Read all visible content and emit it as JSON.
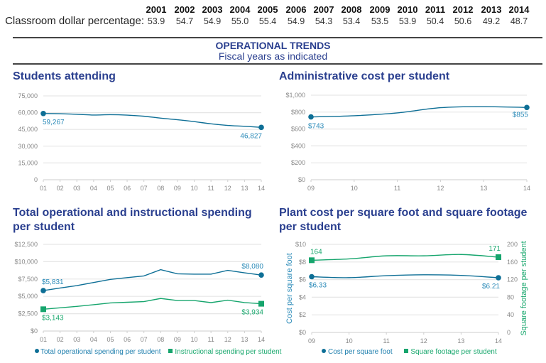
{
  "top_table": {
    "row_label": "Classroom dollar percentage:",
    "years": [
      "2001",
      "2002",
      "2003",
      "2004",
      "2005",
      "2006",
      "2007",
      "2008",
      "2009",
      "2010",
      "2011",
      "2012",
      "2013",
      "2014"
    ],
    "values": [
      "53.9",
      "54.7",
      "54.9",
      "55.0",
      "55.4",
      "54.9",
      "54.3",
      "53.4",
      "53.5",
      "53.9",
      "50.4",
      "50.6",
      "49.2",
      "48.7"
    ]
  },
  "section": {
    "title": "OPERATIONAL TRENDS",
    "subtitle": "Fiscal years as indicated"
  },
  "colors": {
    "primary_line": "#0e6f96",
    "primary_label": "#2a8ab8",
    "secondary_line": "#16a56d",
    "secondary_label": "#1aa86e",
    "title": "#2a3f8f",
    "grid": "#e6e6e6"
  },
  "chart_data": [
    {
      "id": "students",
      "type": "line",
      "title": "Students attending",
      "xlabel": "",
      "ylabel": "",
      "x": [
        "01",
        "02",
        "03",
        "04",
        "05",
        "06",
        "07",
        "08",
        "09",
        "10",
        "11",
        "12",
        "13",
        "14"
      ],
      "ylim": [
        0,
        75000
      ],
      "yticks": [
        0,
        15000,
        30000,
        45000,
        60000,
        75000
      ],
      "ytick_labels": [
        "0",
        "15,000",
        "30,000",
        "45,000",
        "60,000",
        "75,000"
      ],
      "grid": true,
      "series": [
        {
          "name": "Students attending",
          "marker": "circle",
          "values": [
            59267,
            59100,
            58500,
            57900,
            58200,
            57800,
            56800,
            55100,
            53700,
            52000,
            50000,
            48600,
            47800,
            46827
          ],
          "labels": {
            "first": "59,267",
            "last": "46,827"
          }
        }
      ]
    },
    {
      "id": "admin",
      "type": "line",
      "title": "Administrative cost per student",
      "xlabel": "",
      "ylabel": "",
      "x": [
        "09",
        "10",
        "11",
        "12",
        "13",
        "14"
      ],
      "ylim": [
        0,
        1000
      ],
      "yticks": [
        0,
        200,
        400,
        600,
        800,
        1000
      ],
      "ytick_labels": [
        "$0",
        "$200",
        "$400",
        "$600",
        "$800",
        "$1,000"
      ],
      "grid": true,
      "series": [
        {
          "name": "Administrative cost per student",
          "marker": "circle",
          "values": [
            743,
            757,
            790,
            852,
            864,
            855
          ],
          "labels": {
            "first": "$743",
            "last": "$855"
          }
        }
      ]
    },
    {
      "id": "spending",
      "type": "line",
      "title": "Total operational and instructional spending per student",
      "title_lines": [
        "Total operational and instructional spending",
        "per student"
      ],
      "xlabel": "",
      "ylabel": "",
      "x": [
        "01",
        "02",
        "03",
        "04",
        "05",
        "06",
        "07",
        "08",
        "09",
        "10",
        "11",
        "12",
        "13",
        "14"
      ],
      "ylim": [
        0,
        12500
      ],
      "yticks": [
        0,
        2500,
        5000,
        7500,
        10000,
        12500
      ],
      "ytick_labels": [
        "$0",
        "$2,500",
        "$5,000",
        "$7,500",
        "$10,000",
        "$12,500"
      ],
      "grid": true,
      "legend": "bottom",
      "series": [
        {
          "name": "Total operational spending per student",
          "marker": "circle",
          "values": [
            5831,
            6200,
            6550,
            7000,
            7450,
            7700,
            7950,
            8850,
            8250,
            8200,
            8200,
            8750,
            8400,
            8080
          ],
          "labels": {
            "first": "$5,831",
            "last": "$8,080"
          }
        },
        {
          "name": "Instructional spending per student",
          "marker": "square",
          "values": [
            3143,
            3350,
            3550,
            3800,
            4050,
            4150,
            4250,
            4700,
            4400,
            4400,
            4100,
            4450,
            4100,
            3934
          ],
          "labels": {
            "first": "$3,143",
            "last": "$3,934"
          }
        }
      ]
    },
    {
      "id": "plant",
      "type": "line",
      "title": "Plant cost per square foot and square footage per student",
      "title_lines": [
        "Plant cost per square foot and square footage",
        "per student"
      ],
      "xlabel": "",
      "ylabel": "Cost per square foot",
      "ylabel_right": "Square footage per student",
      "x": [
        "09",
        "10",
        "11",
        "12",
        "13",
        "14"
      ],
      "ylim": [
        0,
        10
      ],
      "yticks": [
        0,
        2,
        4,
        6,
        8,
        10
      ],
      "ytick_labels": [
        "$0",
        "$2",
        "$4",
        "$6",
        "$8",
        "$10"
      ],
      "ylim_right": [
        0,
        200
      ],
      "yticks_right": [
        0,
        40,
        80,
        120,
        160,
        200
      ],
      "ytick_labels_right": [
        "0",
        "40",
        "80",
        "120",
        "160",
        "200"
      ],
      "grid": true,
      "legend": "bottom",
      "series": [
        {
          "name": "Cost per square foot",
          "marker": "circle",
          "axis": "left",
          "values": [
            6.33,
            6.22,
            6.45,
            6.55,
            6.48,
            6.21
          ],
          "labels": {
            "first": "$6.33",
            "last": "$6.21"
          }
        },
        {
          "name": "Square footage per student",
          "marker": "square",
          "axis": "right",
          "values": [
            164,
            167,
            174,
            174,
            177,
            171
          ],
          "labels": {
            "first": "164",
            "last": "171"
          }
        }
      ]
    }
  ]
}
